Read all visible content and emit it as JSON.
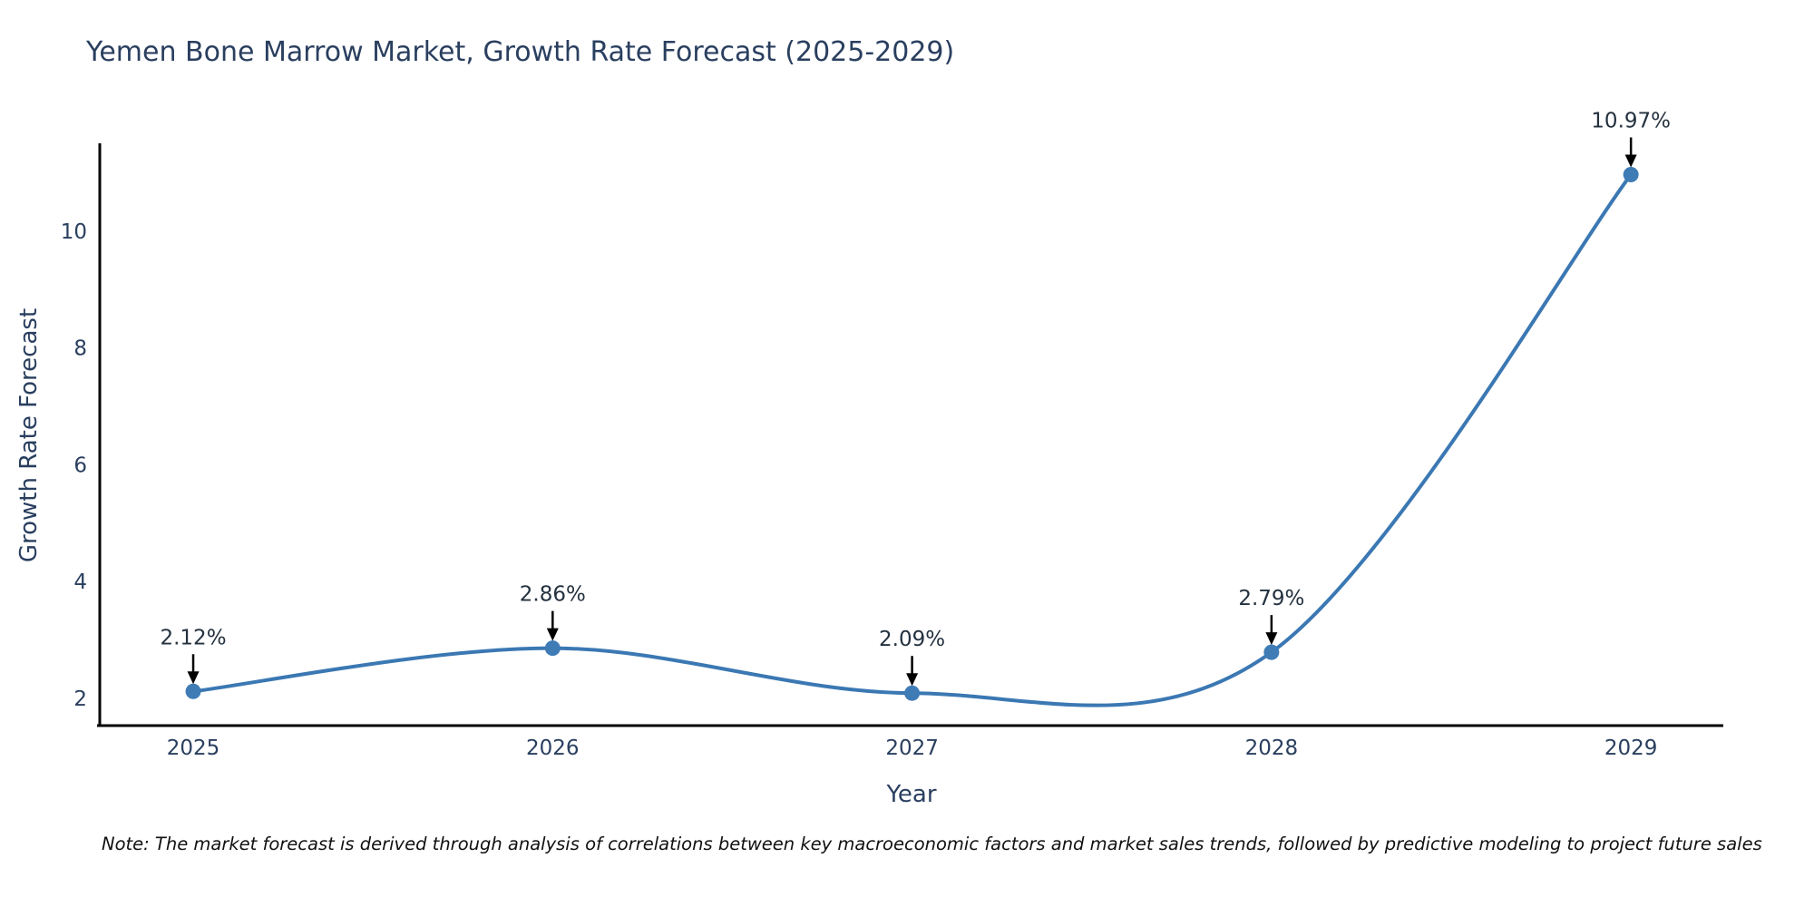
{
  "chart_data": {
    "type": "line",
    "title": "Yemen Bone Marrow Market, Growth Rate Forecast (2025-2029)",
    "xlabel": "Year",
    "ylabel": "Growth Rate Forecast",
    "x": [
      2025,
      2026,
      2027,
      2028,
      2029
    ],
    "y": [
      2.12,
      2.86,
      2.09,
      2.79,
      10.97
    ],
    "point_labels": [
      "2.12%",
      "2.86%",
      "2.09%",
      "2.79%",
      "10.97%"
    ],
    "xticks": [
      2025,
      2026,
      2027,
      2028,
      2029
    ],
    "xtick_labels": [
      "2025",
      "2026",
      "2027",
      "2028",
      "2029"
    ],
    "yticks": [
      2,
      4,
      6,
      8,
      10
    ],
    "ytick_labels": [
      "2",
      "4",
      "6",
      "8",
      "10"
    ],
    "xlim": [
      2024.74,
      2029.257
    ],
    "ylim": [
      1.534,
      11.475
    ],
    "grid": false,
    "legend": "none",
    "line_shape": "spline",
    "line_color": "#3b78b3",
    "marker_color": "#3f7cb6",
    "axis_line_color": "#000000",
    "annotation_arrow_color": "#000000",
    "title_color": "#2a3f5f",
    "note": "Note: The market forecast is derived through analysis of correlations between key macroeconomic factors and market sales trends, followed by predictive modeling to project future sales"
  }
}
